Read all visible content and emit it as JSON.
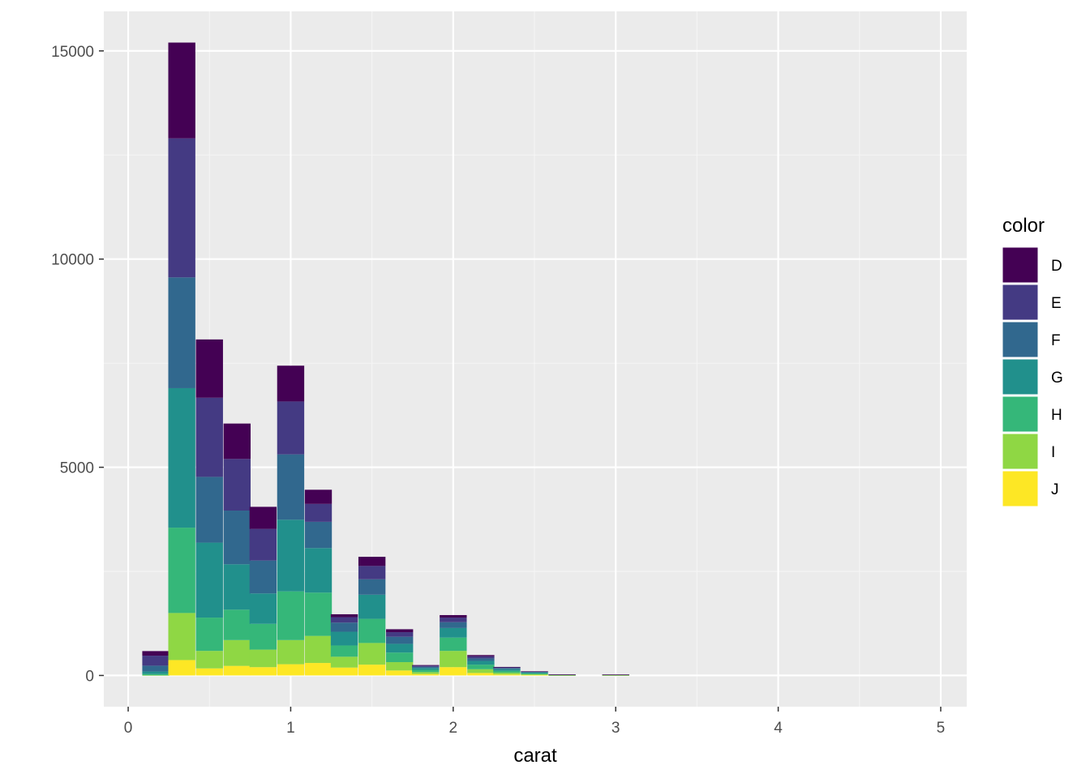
{
  "chart_data": {
    "type": "bar",
    "subtype": "stacked-histogram",
    "xlabel": "carat",
    "ylabel": "",
    "xlim": [
      -0.15,
      5.16
    ],
    "ylim": [
      -750,
      15950
    ],
    "x_ticks": [
      0,
      1,
      2,
      3,
      4,
      5
    ],
    "y_ticks": [
      0,
      5000,
      10000,
      15000
    ],
    "bin_width": 0.1666,
    "grid": true,
    "legend": {
      "title": "color",
      "position": "right"
    },
    "series": [
      {
        "name": "D",
        "color": "#440154"
      },
      {
        "name": "E",
        "color": "#443A83"
      },
      {
        "name": "F",
        "color": "#31688E"
      },
      {
        "name": "G",
        "color": "#21908C"
      },
      {
        "name": "H",
        "color": "#35B779"
      },
      {
        "name": "I",
        "color": "#8FD744"
      },
      {
        "name": "J",
        "color": "#FDE725"
      }
    ],
    "bins": [
      {
        "x": 0.17,
        "values": [
          110,
          240,
          140,
          60,
          30,
          5,
          0
        ]
      },
      {
        "x": 0.33,
        "values": [
          2300,
          3340,
          2660,
          3350,
          2050,
          1130,
          370
        ]
      },
      {
        "x": 0.5,
        "values": [
          1400,
          1900,
          1580,
          1800,
          800,
          420,
          170
        ]
      },
      {
        "x": 0.67,
        "values": [
          850,
          1240,
          1290,
          1090,
          730,
          620,
          230
        ]
      },
      {
        "x": 0.83,
        "values": [
          530,
          760,
          790,
          730,
          620,
          420,
          200
        ]
      },
      {
        "x": 1.0,
        "values": [
          860,
          1270,
          1570,
          1720,
          1170,
          580,
          270
        ]
      },
      {
        "x": 1.17,
        "values": [
          340,
          430,
          630,
          1070,
          1040,
          650,
          300
        ]
      },
      {
        "x": 1.33,
        "values": [
          70,
          130,
          220,
          330,
          270,
          260,
          190
        ]
      },
      {
        "x": 1.5,
        "values": [
          220,
          320,
          370,
          580,
          580,
          520,
          260
        ]
      },
      {
        "x": 1.67,
        "values": [
          70,
          110,
          170,
          210,
          230,
          200,
          120
        ]
      },
      {
        "x": 1.83,
        "values": [
          15,
          25,
          30,
          45,
          55,
          45,
          35
        ]
      },
      {
        "x": 2.0,
        "values": [
          60,
          110,
          140,
          230,
          320,
          390,
          200
        ]
      },
      {
        "x": 2.17,
        "values": [
          30,
          50,
          60,
          90,
          110,
          90,
          60
        ]
      },
      {
        "x": 2.33,
        "values": [
          10,
          15,
          30,
          40,
          45,
          40,
          25
        ]
      },
      {
        "x": 2.5,
        "values": [
          5,
          8,
          12,
          25,
          20,
          20,
          10
        ]
      },
      {
        "x": 2.67,
        "values": [
          1,
          2,
          3,
          5,
          5,
          4,
          3
        ]
      },
      {
        "x": 2.83,
        "values": [
          0,
          0,
          0,
          0,
          0,
          0,
          0
        ]
      },
      {
        "x": 3.0,
        "values": [
          1,
          2,
          3,
          4,
          4,
          5,
          3
        ]
      },
      {
        "x": 3.17,
        "values": [
          0,
          0,
          0,
          0,
          0,
          0,
          0
        ]
      },
      {
        "x": 3.33,
        "values": [
          0,
          0,
          0,
          0,
          0,
          0,
          0
        ]
      },
      {
        "x": 3.5,
        "values": [
          0,
          0,
          0,
          0,
          0,
          0,
          0
        ]
      },
      {
        "x": 3.67,
        "values": [
          0,
          0,
          0,
          0,
          0,
          0,
          0
        ]
      },
      {
        "x": 3.83,
        "values": [
          0,
          0,
          0,
          0,
          0,
          0,
          0
        ]
      },
      {
        "x": 4.0,
        "values": [
          0,
          0,
          0,
          0,
          0,
          0,
          0
        ]
      },
      {
        "x": 4.17,
        "values": [
          0,
          0,
          0,
          0,
          0,
          0,
          0
        ]
      },
      {
        "x": 4.33,
        "values": [
          0,
          0,
          0,
          0,
          0,
          0,
          0
        ]
      },
      {
        "x": 4.5,
        "values": [
          0,
          0,
          0,
          0,
          0,
          0,
          0
        ]
      },
      {
        "x": 4.67,
        "values": [
          0,
          0,
          0,
          0,
          0,
          0,
          0
        ]
      },
      {
        "x": 4.83,
        "values": [
          0,
          0,
          0,
          0,
          0,
          0,
          0
        ]
      },
      {
        "x": 5.0,
        "values": [
          0,
          0,
          0,
          0,
          0,
          0,
          0
        ]
      }
    ]
  },
  "colors": {
    "panel_background": "#EBEBEB",
    "grid_major": "#FFFFFF",
    "grid_minor": "#F5F5F5",
    "tick_text": "#4D4D4D"
  }
}
